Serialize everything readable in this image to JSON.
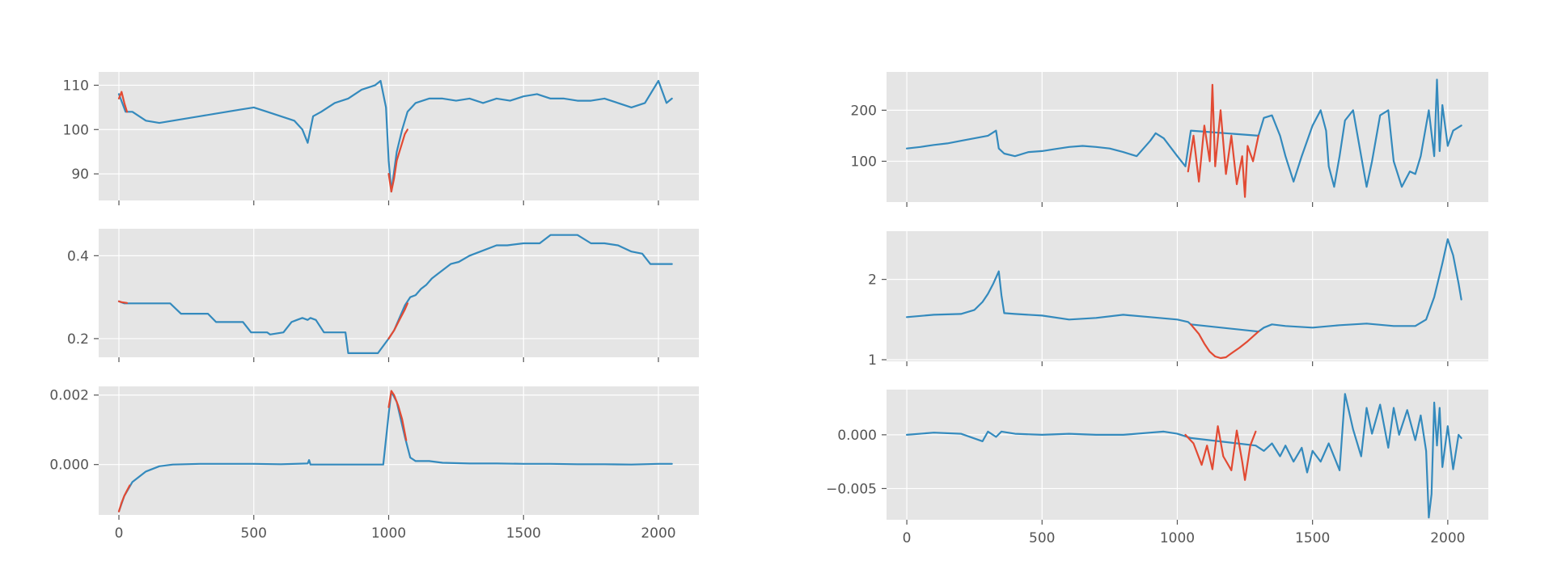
{
  "figure": {
    "layout": "3 rows x 2 columns, shared x axis per column",
    "style": "ggplot",
    "background": "#E5E5E5",
    "grid": true,
    "grid_color": "#FFFFFF",
    "series_color": "#348ABD",
    "highlight_color": "#E24A33"
  },
  "chart_data": [
    {
      "type": "line",
      "panel": "left-top",
      "title": "",
      "xlabel": "",
      "ylabel": "",
      "xlim": [
        -75,
        2150
      ],
      "ylim": [
        84,
        113
      ],
      "x_ticks": [
        0,
        500,
        1000,
        1500,
        2000
      ],
      "y_ticks": [
        90,
        100,
        110
      ],
      "y_tick_labels": [
        "90",
        "100",
        "110"
      ],
      "show_x_tick_labels": false,
      "series": [
        {
          "role": "base",
          "x": [
            0,
            25,
            50,
            100,
            150,
            200,
            250,
            300,
            350,
            400,
            450,
            500,
            550,
            600,
            650,
            680,
            700,
            720,
            750,
            800,
            850,
            900,
            950,
            970,
            990,
            1000,
            1010,
            1030,
            1050,
            1070,
            1100,
            1150,
            1200,
            1250,
            1300,
            1350,
            1400,
            1450,
            1500,
            1550,
            1600,
            1650,
            1700,
            1750,
            1800,
            1850,
            1900,
            1950,
            2000,
            2030,
            2050
          ],
          "y": [
            108,
            104,
            104,
            102,
            101.5,
            102,
            102.5,
            103,
            103.5,
            104,
            104.5,
            105,
            104,
            103,
            102,
            100,
            97,
            103,
            104,
            106,
            107,
            109,
            110,
            111,
            105,
            93,
            86,
            95,
            100,
            104,
            106,
            107,
            107,
            106.5,
            107,
            106,
            107,
            106.5,
            107.5,
            108,
            107,
            107,
            106.5,
            106.5,
            107,
            106,
            105,
            106,
            111,
            106,
            107
          ]
        },
        {
          "role": "highlight",
          "x": [
            0,
            10,
            20,
            30
          ],
          "y": [
            107,
            108.5,
            106,
            104
          ]
        },
        {
          "role": "highlight",
          "x": [
            1000,
            1010,
            1020,
            1030,
            1040,
            1050,
            1060,
            1070
          ],
          "y": [
            90,
            86,
            89,
            93,
            95,
            97,
            99,
            100
          ]
        }
      ]
    },
    {
      "type": "line",
      "panel": "left-middle",
      "title": "",
      "xlabel": "",
      "ylabel": "",
      "xlim": [
        -75,
        2150
      ],
      "ylim": [
        0.155,
        0.465
      ],
      "x_ticks": [
        0,
        500,
        1000,
        1500,
        2000
      ],
      "y_ticks": [
        0.2,
        0.4
      ],
      "y_tick_labels": [
        "0.2",
        "0.4"
      ],
      "show_x_tick_labels": false,
      "series": [
        {
          "role": "base",
          "x": [
            0,
            20,
            40,
            190,
            230,
            330,
            360,
            460,
            490,
            550,
            560,
            610,
            640,
            660,
            680,
            700,
            710,
            730,
            760,
            840,
            850,
            960,
            1000,
            1020,
            1060,
            1080,
            1100,
            1120,
            1140,
            1160,
            1180,
            1200,
            1230,
            1260,
            1300,
            1340,
            1400,
            1440,
            1500,
            1560,
            1600,
            1700,
            1750,
            1800,
            1850,
            1900,
            1940,
            1970,
            2000,
            2050
          ],
          "y": [
            0.29,
            0.285,
            0.285,
            0.285,
            0.26,
            0.26,
            0.24,
            0.24,
            0.215,
            0.215,
            0.21,
            0.215,
            0.24,
            0.245,
            0.25,
            0.245,
            0.25,
            0.245,
            0.215,
            0.215,
            0.165,
            0.165,
            0.2,
            0.22,
            0.28,
            0.3,
            0.305,
            0.32,
            0.33,
            0.345,
            0.355,
            0.365,
            0.38,
            0.385,
            0.4,
            0.41,
            0.425,
            0.425,
            0.43,
            0.43,
            0.45,
            0.45,
            0.43,
            0.43,
            0.425,
            0.41,
            0.405,
            0.38,
            0.38,
            0.38
          ]
        },
        {
          "role": "highlight",
          "x": [
            0,
            10,
            20,
            30
          ],
          "y": [
            0.29,
            0.288,
            0.287,
            0.286
          ]
        },
        {
          "role": "highlight",
          "x": [
            1000,
            1020,
            1040,
            1060,
            1070
          ],
          "y": [
            0.2,
            0.22,
            0.245,
            0.27,
            0.285
          ]
        }
      ]
    },
    {
      "type": "line",
      "panel": "left-bottom",
      "title": "",
      "xlabel": "",
      "ylabel": "",
      "xlim": [
        -75,
        2150
      ],
      "ylim": [
        -0.00145,
        0.00225
      ],
      "x_ticks": [
        0,
        500,
        1000,
        1500,
        2000
      ],
      "x_tick_labels": [
        "0",
        "500",
        "1000",
        "1500",
        "2000"
      ],
      "y_ticks": [
        0,
        0.002
      ],
      "y_tick_labels": [
        "0.000",
        "0.002"
      ],
      "show_x_tick_labels": true,
      "series": [
        {
          "role": "base",
          "x": [
            0,
            20,
            50,
            100,
            150,
            200,
            300,
            400,
            500,
            600,
            700,
            705,
            710,
            800,
            900,
            950,
            980,
            1000,
            1010,
            1030,
            1060,
            1080,
            1100,
            1150,
            1200,
            1300,
            1400,
            1500,
            1600,
            1700,
            1800,
            1900,
            2000,
            2050
          ],
          "y": [
            -0.00135,
            -0.0009,
            -0.0005,
            -0.0002,
            -5e-05,
            0,
            2e-05,
            2e-05,
            2e-05,
            1e-05,
            3e-05,
            0.00013,
            0.0,
            0,
            0,
            0,
            0.0,
            0.00145,
            0.0021,
            0.0018,
            0.0008,
            0.0002,
            0.0001,
            0.0001,
            5e-05,
            3e-05,
            3e-05,
            2e-05,
            2e-05,
            1e-05,
            1e-05,
            0,
            2e-05,
            2e-05
          ]
        },
        {
          "role": "highlight",
          "x": [
            0,
            10,
            20,
            30,
            40
          ],
          "y": [
            -0.00135,
            -0.0011,
            -0.0009,
            -0.00075,
            -0.0006
          ]
        },
        {
          "role": "highlight",
          "x": [
            1000,
            1010,
            1020,
            1035,
            1050,
            1065
          ],
          "y": [
            0.00165,
            0.00212,
            0.002,
            0.0017,
            0.0013,
            0.0007
          ]
        }
      ]
    },
    {
      "type": "line",
      "panel": "right-top",
      "title": "",
      "xlabel": "",
      "ylabel": "",
      "xlim": [
        -75,
        2150
      ],
      "ylim": [
        20,
        275
      ],
      "x_ticks": [
        0,
        500,
        1000,
        1500,
        2000
      ],
      "y_ticks": [
        100,
        200
      ],
      "y_tick_labels": [
        "100",
        "200"
      ],
      "show_x_tick_labels": false,
      "series": [
        {
          "role": "base",
          "x": [
            0,
            50,
            100,
            150,
            200,
            250,
            300,
            330,
            340,
            360,
            400,
            450,
            500,
            550,
            600,
            650,
            700,
            750,
            800,
            850,
            900,
            920,
            950,
            1000,
            1030,
            1050,
            1300,
            1320,
            1350,
            1380,
            1400,
            1430,
            1460,
            1500,
            1530,
            1550,
            1560,
            1580,
            1600,
            1620,
            1650,
            1680,
            1700,
            1720,
            1750,
            1780,
            1800,
            1830,
            1860,
            1880,
            1900,
            1930,
            1950,
            1960,
            1970,
            1980,
            2000,
            2020,
            2050
          ],
          "y": [
            125,
            128,
            132,
            135,
            140,
            145,
            150,
            160,
            125,
            115,
            110,
            118,
            120,
            124,
            128,
            130,
            128,
            125,
            118,
            110,
            140,
            155,
            145,
            110,
            90,
            160,
            150,
            185,
            190,
            150,
            110,
            60,
            110,
            170,
            200,
            160,
            90,
            50,
            110,
            180,
            200,
            110,
            50,
            100,
            190,
            200,
            100,
            50,
            80,
            75,
            110,
            200,
            110,
            260,
            120,
            210,
            130,
            160,
            170
          ]
        },
        {
          "role": "highlight",
          "x": [
            1040,
            1060,
            1080,
            1100,
            1120,
            1130,
            1140,
            1160,
            1180,
            1200,
            1220,
            1240,
            1250,
            1260,
            1280,
            1300
          ],
          "y": [
            80,
            150,
            60,
            170,
            100,
            250,
            90,
            200,
            75,
            150,
            55,
            110,
            30,
            130,
            100,
            150
          ]
        }
      ]
    },
    {
      "type": "line",
      "panel": "right-middle",
      "title": "",
      "xlabel": "",
      "ylabel": "",
      "xlim": [
        -75,
        2150
      ],
      "ylim": [
        0.98,
        2.6
      ],
      "x_ticks": [
        0,
        500,
        1000,
        1500,
        2000
      ],
      "y_ticks": [
        1,
        2
      ],
      "y_tick_labels": [
        "1",
        "2"
      ],
      "show_x_tick_labels": false,
      "series": [
        {
          "role": "base",
          "x": [
            0,
            100,
            200,
            250,
            280,
            300,
            320,
            340,
            350,
            360,
            400,
            500,
            600,
            700,
            800,
            900,
            1000,
            1040,
            1050,
            1300,
            1320,
            1350,
            1400,
            1500,
            1600,
            1700,
            1800,
            1880,
            1920,
            1950,
            1980,
            2000,
            2020,
            2040,
            2050
          ],
          "y": [
            1.53,
            1.56,
            1.57,
            1.62,
            1.72,
            1.82,
            1.95,
            2.1,
            1.8,
            1.58,
            1.57,
            1.55,
            1.5,
            1.52,
            1.56,
            1.53,
            1.5,
            1.47,
            1.44,
            1.35,
            1.4,
            1.44,
            1.42,
            1.4,
            1.43,
            1.45,
            1.42,
            1.42,
            1.5,
            1.78,
            2.2,
            2.5,
            2.3,
            1.95,
            1.75
          ]
        },
        {
          "role": "highlight",
          "x": [
            1050,
            1080,
            1100,
            1120,
            1140,
            1160,
            1180,
            1200,
            1230,
            1260,
            1300
          ],
          "y": [
            1.44,
            1.32,
            1.2,
            1.1,
            1.04,
            1.02,
            1.03,
            1.08,
            1.15,
            1.23,
            1.35
          ]
        }
      ]
    },
    {
      "type": "line",
      "panel": "right-bottom",
      "title": "",
      "xlabel": "",
      "ylabel": "",
      "xlim": [
        -75,
        2150
      ],
      "ylim": [
        -0.0079,
        0.0042
      ],
      "x_ticks": [
        0,
        500,
        1000,
        1500,
        2000
      ],
      "x_tick_labels": [
        "0",
        "500",
        "1000",
        "1500",
        "2000"
      ],
      "y_ticks": [
        -0.005,
        0
      ],
      "y_tick_labels": [
        "−0.005",
        "0.000"
      ],
      "show_x_tick_labels": true,
      "series": [
        {
          "role": "base",
          "x": [
            0,
            100,
            200,
            280,
            300,
            330,
            350,
            400,
            500,
            600,
            700,
            800,
            900,
            950,
            1000,
            1050,
            1290,
            1320,
            1350,
            1380,
            1400,
            1430,
            1460,
            1480,
            1500,
            1530,
            1560,
            1600,
            1620,
            1650,
            1680,
            1700,
            1720,
            1750,
            1780,
            1800,
            1820,
            1850,
            1880,
            1900,
            1920,
            1930,
            1940,
            1950,
            1960,
            1970,
            1980,
            2000,
            2020,
            2040,
            2050
          ],
          "y": [
            0,
            0.0002,
            0.0001,
            -0.0006,
            0.0003,
            -0.0002,
            0.0003,
            0.0001,
            0,
            0.0001,
            0,
            0,
            0.0002,
            0.0003,
            0.0001,
            -0.0003,
            -0.001,
            -0.0015,
            -0.0008,
            -0.002,
            -0.001,
            -0.0025,
            -0.0012,
            -0.0035,
            -0.0015,
            -0.0025,
            -0.0008,
            -0.0033,
            0.0038,
            0.0005,
            -0.002,
            0.0025,
            0.0001,
            0.0028,
            -0.0012,
            0.0025,
            0.0,
            0.0023,
            -0.0005,
            0.0018,
            -0.0015,
            -0.0077,
            -0.0055,
            0.003,
            -0.001,
            0.0025,
            -0.003,
            0.0008,
            -0.0032,
            0.0,
            -0.0003
          ]
        },
        {
          "role": "highlight",
          "x": [
            1030,
            1060,
            1090,
            1110,
            1130,
            1150,
            1170,
            1200,
            1220,
            1240,
            1250,
            1270,
            1290
          ],
          "y": [
            0,
            -0.0008,
            -0.0028,
            -0.001,
            -0.0032,
            0.0008,
            -0.002,
            -0.0033,
            0.0004,
            -0.0025,
            -0.0042,
            -0.001,
            0.0003
          ]
        }
      ]
    }
  ]
}
